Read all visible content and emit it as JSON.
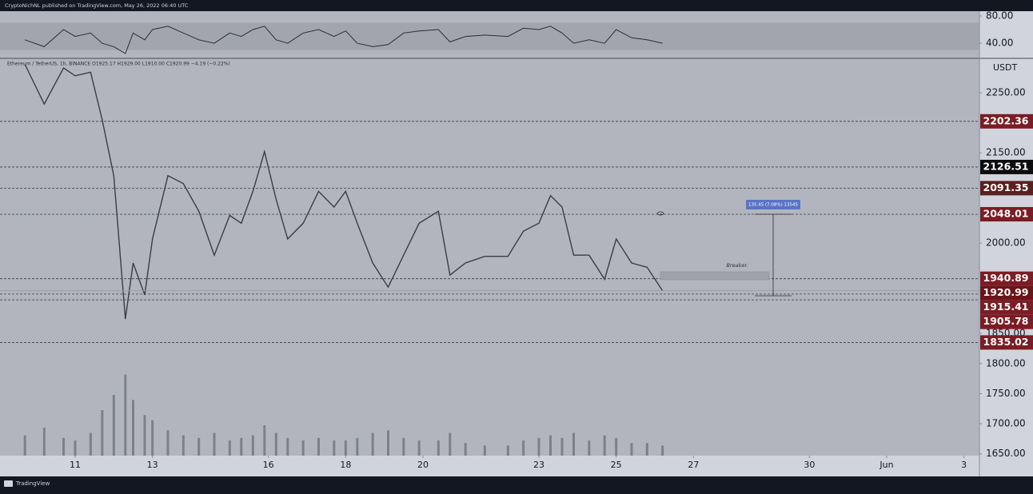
{
  "header": {
    "publisher": "CryptoNichNL published on TradingView.com, May 26, 2022 06:40 UTC"
  },
  "footer": {
    "brand": "TradingView"
  },
  "chart_data": [
    {
      "type": "line",
      "color": "#2a2e39",
      "band": [
        30,
        70
      ],
      "x": [
        9.7,
        10.2,
        10.7,
        11.0,
        11.4,
        11.7,
        12.0,
        12.3,
        12.5,
        12.8,
        13.0,
        13.4,
        13.8,
        14.2,
        14.6,
        15.0,
        15.3,
        15.6,
        15.9,
        16.2,
        16.5,
        16.9,
        17.3,
        17.7,
        18.0,
        18.3,
        18.7,
        19.1,
        19.5,
        19.9,
        20.4,
        20.7,
        21.1,
        21.6,
        22.2,
        22.6,
        23.0,
        23.3,
        23.6,
        23.9,
        24.3,
        24.7,
        25.0,
        25.4,
        25.8,
        26.2
      ],
      "values": [
        45,
        35,
        60,
        50,
        55,
        40,
        35,
        25,
        55,
        45,
        60,
        65,
        55,
        45,
        40,
        55,
        50,
        60,
        65,
        45,
        40,
        55,
        60,
        50,
        58,
        40,
        35,
        38,
        55,
        58,
        60,
        42,
        50,
        52,
        50,
        62,
        60,
        65,
        55,
        40,
        45,
        40,
        60,
        48,
        45,
        40
      ],
      "ylim": [
        19,
        87
      ],
      "yticks": [
        {
          "value": 80,
          "label": "80.00"
        },
        {
          "value": 40,
          "label": "40.00"
        }
      ]
    },
    {
      "type": "line",
      "color": "#3a3d45",
      "symbol_info": "Ethereum / TetherUS, 1h, BINANCE  O1925.17 H1929.00 L1910.00 C1920.99 −4.19 (−0.22%)",
      "currency": "USDT",
      "x": [
        9.7,
        10.2,
        10.7,
        11.0,
        11.4,
        11.7,
        12.0,
        12.3,
        12.5,
        12.8,
        13.0,
        13.4,
        13.8,
        14.2,
        14.6,
        15.0,
        15.3,
        15.6,
        15.9,
        16.2,
        16.5,
        16.9,
        17.3,
        17.7,
        18.0,
        18.3,
        18.7,
        19.1,
        19.5,
        19.9,
        20.4,
        20.7,
        21.1,
        21.6,
        22.2,
        22.6,
        23.0,
        23.3,
        23.6,
        23.9,
        24.3,
        24.7,
        25.0,
        25.4,
        25.8,
        26.2
      ],
      "values": [
        2297,
        2231,
        2291,
        2278,
        2284,
        2205,
        2112,
        1874,
        1967,
        1914,
        2007,
        2112,
        2099,
        2053,
        1980,
        2046,
        2033,
        2086,
        2152,
        2073,
        2007,
        2033,
        2086,
        2060,
        2086,
        2033,
        1967,
        1927,
        1980,
        2033,
        2053,
        1947,
        1967,
        1978,
        1978,
        2020,
        2033,
        2079,
        2060,
        1980,
        1980,
        1940,
        2007,
        1967,
        1960,
        1921
      ],
      "xlim": [
        9.2,
        34.4
      ],
      "xticks": [
        11,
        13,
        16,
        18,
        20,
        23,
        25,
        27,
        30,
        {
          "value": 32,
          "label": "Jun"
        },
        {
          "value": 34,
          "label": "3"
        }
      ],
      "ylim": [
        1647,
        2307
      ],
      "yticks": [
        {
          "value": 2250,
          "label": "2250.00"
        },
        {
          "value": 2150,
          "label": "2150.00"
        },
        {
          "value": 2000,
          "label": "2000.00"
        },
        {
          "value": 1850,
          "label": "1850.00"
        },
        {
          "value": 1800,
          "label": "1800.00"
        },
        {
          "value": 1750,
          "label": "1750.00"
        },
        {
          "value": 1700,
          "label": "1700.00"
        },
        {
          "value": 1650,
          "label": "1650.00"
        }
      ],
      "levels": [
        {
          "value": 2202.36,
          "color": "#7c1c24"
        },
        {
          "value": 2126.51,
          "color": "#0c0c0e"
        },
        {
          "value": 2091.35,
          "color": "#5a201d"
        },
        {
          "value": 2048.01,
          "color": "#7c1c24"
        },
        {
          "value": 1940.89,
          "color": "#7c1c24"
        },
        {
          "value": 1920.99,
          "color": "#6b1419",
          "style": "solid"
        },
        {
          "value": 1915.41,
          "color": "#7c1c24"
        },
        {
          "value": 1905.78,
          "color": "#7c1c24"
        },
        {
          "value": 1835.02,
          "color": "#7c1c24"
        }
      ],
      "annotations": [
        {
          "text": "Breaker."
        },
        {
          "text": "135.45 (7.08%) 13545"
        }
      ]
    },
    {
      "type": "bar",
      "color": "#7d808b",
      "x": [
        9.7,
        10.2,
        10.7,
        11.0,
        11.4,
        11.7,
        12.0,
        12.3,
        12.5,
        12.8,
        13.0,
        13.4,
        13.8,
        14.2,
        14.6,
        15.0,
        15.3,
        15.6,
        15.9,
        16.2,
        16.5,
        16.9,
        17.3,
        17.7,
        18.0,
        18.3,
        18.7,
        19.1,
        19.5,
        19.9,
        20.4,
        20.7,
        21.1,
        21.6,
        22.2,
        22.6,
        23.0,
        23.3,
        23.6,
        23.9,
        24.3,
        24.7,
        25.0,
        25.4,
        25.8,
        26.2
      ],
      "values": [
        40,
        55,
        35,
        30,
        45,
        90,
        120,
        160,
        110,
        80,
        70,
        50,
        40,
        35,
        45,
        30,
        35,
        40,
        60,
        45,
        35,
        30,
        35,
        30,
        30,
        35,
        45,
        50,
        35,
        30,
        30,
        45,
        25,
        20,
        20,
        30,
        35,
        40,
        35,
        45,
        30,
        40,
        35,
        25,
        25,
        20
      ],
      "ylim": [
        0,
        300
      ]
    }
  ]
}
